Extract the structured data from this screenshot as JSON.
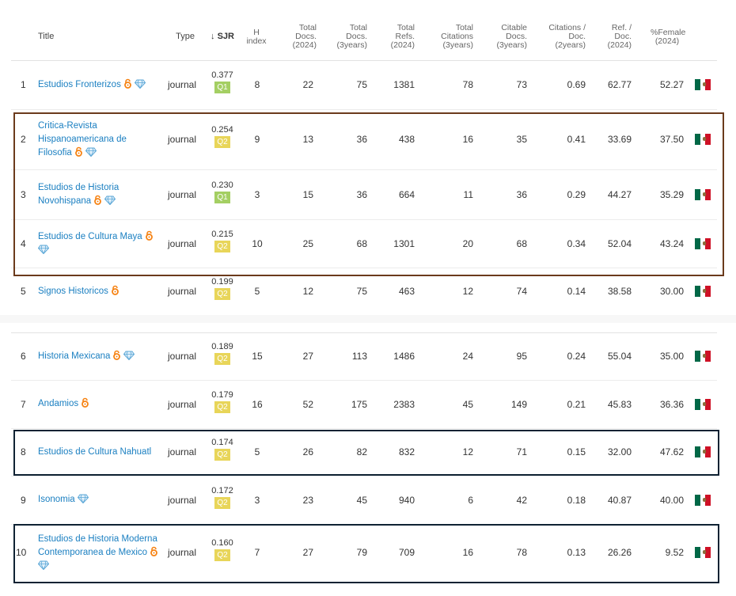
{
  "header": {
    "title": "Title",
    "type": "Type",
    "sjr": "↓ SJR",
    "h_index_1": "H",
    "h_index_2": "index",
    "total_docs_2024_1": "Total",
    "total_docs_2024_2": "Docs.",
    "total_docs_2024_3": "(2024)",
    "total_docs_3y_1": "Total",
    "total_docs_3y_2": "Docs.",
    "total_docs_3y_3": "(3years)",
    "total_refs_1": "Total",
    "total_refs_2": "Refs.",
    "total_refs_3": "(2024)",
    "total_cit_1": "Total",
    "total_cit_2": "Citations",
    "total_cit_3": "(3years)",
    "citable_1": "Citable",
    "citable_2": "Docs.",
    "citable_3": "(3years)",
    "cit_doc_1": "Citations /",
    "cit_doc_2": "Doc.",
    "cit_doc_3": "(2years)",
    "ref_doc_1": "Ref. /",
    "ref_doc_2": "Doc.",
    "ref_doc_3": "(2024)",
    "female_1": "%Female",
    "female_2": "(2024)"
  },
  "rows": [
    {
      "rank": "1",
      "title_lines": [
        "Estudios Fronterizos"
      ],
      "type": "journal",
      "sjr": "0.377",
      "q": "Q1",
      "h": "8",
      "docs2024": "22",
      "docs3y": "75",
      "refs": "1381",
      "cit3y": "78",
      "citable": "73",
      "citdoc": "0.69",
      "refdoc": "62.77",
      "female": "52.27",
      "flag_icon": "mexico-flag-icon"
    },
    {
      "rank": "2",
      "title_lines": [
        "Critica-Revista",
        "Hispanoamericana de",
        "Filosofia"
      ],
      "type": "journal",
      "sjr": "0.254",
      "q": "Q2",
      "h": "9",
      "docs2024": "13",
      "docs3y": "36",
      "refs": "438",
      "cit3y": "16",
      "citable": "35",
      "citdoc": "0.41",
      "refdoc": "33.69",
      "female": "37.50",
      "flag_icon": "mexico-flag-icon"
    },
    {
      "rank": "3",
      "title_lines": [
        "Estudios de Historia",
        "Novohispana"
      ],
      "type": "journal",
      "sjr": "0.230",
      "q": "Q1",
      "h": "3",
      "docs2024": "15",
      "docs3y": "36",
      "refs": "664",
      "cit3y": "11",
      "citable": "36",
      "citdoc": "0.29",
      "refdoc": "44.27",
      "female": "35.29",
      "flag_icon": "mexico-flag-icon"
    },
    {
      "rank": "4",
      "title_lines": [
        "Estudios de Cultura Maya"
      ],
      "type": "journal",
      "sjr": "0.215",
      "q": "Q2",
      "h": "10",
      "docs2024": "25",
      "docs3y": "68",
      "refs": "1301",
      "cit3y": "20",
      "citable": "68",
      "citdoc": "0.34",
      "refdoc": "52.04",
      "female": "43.24",
      "flag_icon": "mexico-flag-icon"
    },
    {
      "rank": "5",
      "title_lines": [
        "Signos Historicos"
      ],
      "type": "journal",
      "sjr": "0.199",
      "q": "Q2",
      "h": "5",
      "docs2024": "12",
      "docs3y": "75",
      "refs": "463",
      "cit3y": "12",
      "citable": "74",
      "citdoc": "0.14",
      "refdoc": "38.58",
      "female": "30.00",
      "flag_icon": "mexico-flag-icon"
    },
    {
      "rank": "6",
      "title_lines": [
        "Historia Mexicana"
      ],
      "type": "journal",
      "sjr": "0.189",
      "q": "Q2",
      "h": "15",
      "docs2024": "27",
      "docs3y": "113",
      "refs": "1486",
      "cit3y": "24",
      "citable": "95",
      "citdoc": "0.24",
      "refdoc": "55.04",
      "female": "35.00",
      "flag_icon": "mexico-flag-icon"
    },
    {
      "rank": "7",
      "title_lines": [
        "Andamios"
      ],
      "type": "journal",
      "sjr": "0.179",
      "q": "Q2",
      "h": "16",
      "docs2024": "52",
      "docs3y": "175",
      "refs": "2383",
      "cit3y": "45",
      "citable": "149",
      "citdoc": "0.21",
      "refdoc": "45.83",
      "female": "36.36",
      "flag_icon": "mexico-flag-icon"
    },
    {
      "rank": "8",
      "title_lines": [
        "Estudios de Cultura Nahuatl"
      ],
      "type": "journal",
      "sjr": "0.174",
      "q": "Q2",
      "h": "5",
      "docs2024": "26",
      "docs3y": "82",
      "refs": "832",
      "cit3y": "12",
      "citable": "71",
      "citdoc": "0.15",
      "refdoc": "32.00",
      "female": "47.62",
      "flag_icon": "mexico-flag-icon"
    },
    {
      "rank": "9",
      "title_lines": [
        "Isonomia"
      ],
      "type": "journal",
      "sjr": "0.172",
      "q": "Q2",
      "h": "3",
      "docs2024": "23",
      "docs3y": "45",
      "refs": "940",
      "cit3y": "6",
      "citable": "42",
      "citdoc": "0.18",
      "refdoc": "40.87",
      "female": "40.00",
      "flag_icon": "mexico-flag-icon"
    },
    {
      "rank": "10",
      "title_lines": [
        "Estudios de Historia Moderna",
        "Contemporanea de Mexico"
      ],
      "type": "journal",
      "sjr": "0.160",
      "q": "Q2",
      "h": "7",
      "docs2024": "27",
      "docs3y": "79",
      "refs": "709",
      "cit3y": "16",
      "citable": "78",
      "citdoc": "0.13",
      "refdoc": "26.26",
      "female": "9.52",
      "flag_icon": "mexico-flag-icon"
    }
  ],
  "colors": {
    "link": "#1a7fc1",
    "q1": "#a4cf63",
    "q2": "#e8d559",
    "highlight_box_brown": "#6b3a1c",
    "highlight_box_navy": "#0f2233"
  }
}
